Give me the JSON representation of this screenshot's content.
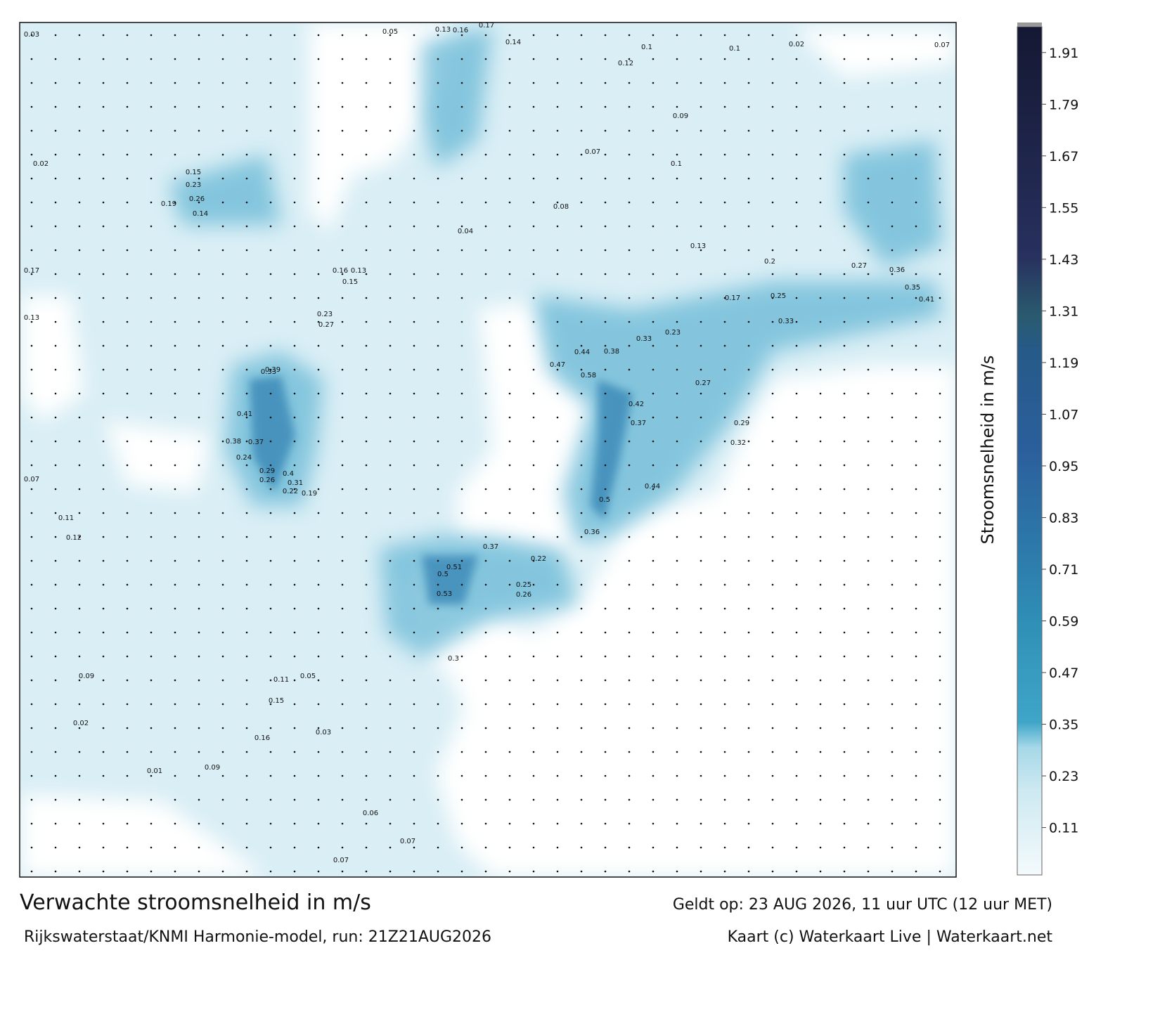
{
  "title": "Verwachte stroomsnelheid in m/s",
  "subtitle": "Rijkswaterstaat/KNMI Harmonie-model, run: 21Z21AUG2026",
  "valid_time": "Geldt op: 23 AUG 2026, 11 uur UTC (12 uur MET)",
  "credit": "Kaart (c) Waterkaart Live | Waterkaart.net",
  "colorbar": {
    "label": "Stroomsnelheid in m/s",
    "lim": [
      0,
      1.97
    ],
    "ticks": [
      0.11,
      0.23,
      0.35,
      0.47,
      0.59,
      0.71,
      0.83,
      0.95,
      1.07,
      1.19,
      1.31,
      1.43,
      1.55,
      1.67,
      1.79,
      1.91
    ]
  },
  "map_labels": [
    "0.03",
    "0.02",
    "0.17",
    "0.13",
    "0.07",
    "0.11",
    "0.12",
    "0.09",
    "0.02",
    "0.01",
    "0.09",
    "0.16",
    "0.15",
    "0.11",
    "0.05",
    "0.03",
    "0.07",
    "0.06",
    "0.07",
    "0.3",
    "0.53",
    "0.51",
    "0.5",
    "0.22",
    "0.25",
    "0.26",
    "0.37",
    "0.36",
    "0.5",
    "0.44",
    "0.42",
    "0.37",
    "0.38",
    "0.58",
    "0.47",
    "0.44",
    "0.33",
    "0.23",
    "0.27",
    "0.29",
    "0.32",
    "0.25",
    "0.33",
    "0.41",
    "0.35",
    "0.27",
    "0.36",
    "0.2",
    "0.13",
    "0.17",
    "0.1",
    "0.02",
    "0.07",
    "0.17",
    "0.14",
    "0.1",
    "0.12",
    "0.09",
    "0.07",
    "0.1",
    "0.08",
    "0.04",
    "0.33",
    "0.39",
    "0.41",
    "0.38",
    "0.37",
    "0.24",
    "0.29",
    "0.26",
    "0.4",
    "0.31",
    "0.22",
    "0.19",
    "0.27",
    "0.23",
    "0.15",
    "0.13",
    "0.16",
    "0.26",
    "0.23",
    "0.19",
    "0.15",
    "0.14",
    "0.05",
    "0.13",
    "0.16"
  ]
}
